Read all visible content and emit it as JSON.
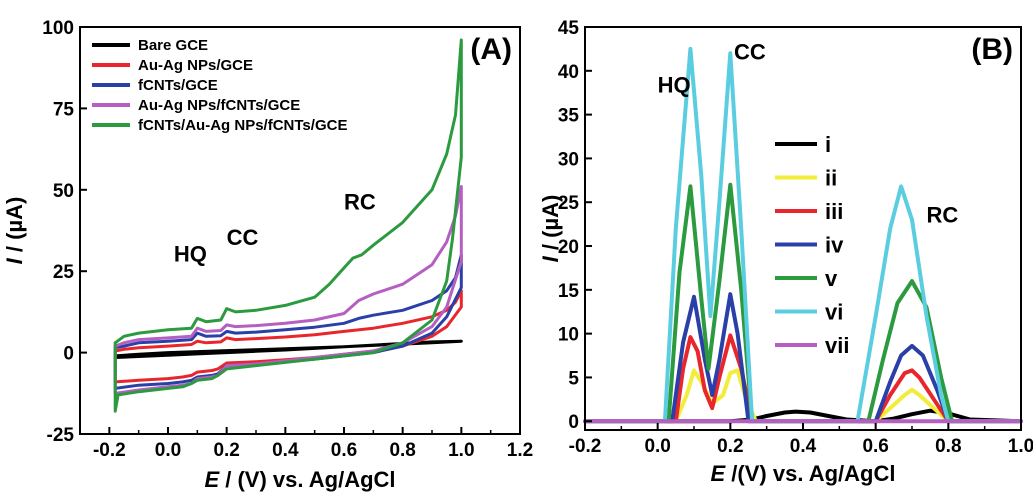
{
  "chart_data": [
    {
      "type": "line",
      "panel_label": "(A)",
      "xlabel": {
        "italic": "E",
        "rest": " / (V) vs. Ag/AgCl"
      },
      "ylabel": {
        "italic": "I",
        "rest": " / (µA)"
      },
      "xlim": [
        -0.3,
        1.2
      ],
      "ylim": [
        -25,
        100
      ],
      "xticks": [
        -0.2,
        0.0,
        0.2,
        0.4,
        0.6,
        0.8,
        1.0,
        1.2
      ],
      "xtick_labels": [
        "-0.2",
        "0.0",
        "0.2",
        "0.4",
        "0.6",
        "0.8",
        "1.0",
        "1.2"
      ],
      "yticks": [
        -25,
        0,
        25,
        50,
        75,
        100
      ],
      "ytick_labels": [
        "-25",
        "0",
        "25",
        "50",
        "75",
        "100"
      ],
      "legend_position": "top-left",
      "annotations": [
        {
          "text": "HQ",
          "x": 0.02,
          "y": 28
        },
        {
          "text": "CC",
          "x": 0.2,
          "y": 33
        },
        {
          "text": "RC",
          "x": 0.6,
          "y": 44
        }
      ],
      "series": [
        {
          "name": "Bare GCE",
          "color": "#000000",
          "x": [
            -0.18,
            -0.1,
            0.0,
            0.1,
            0.2,
            0.3,
            0.4,
            0.5,
            0.6,
            0.7,
            0.8,
            0.9,
            1.0,
            1.0,
            0.9,
            0.8,
            0.7,
            0.6,
            0.5,
            0.4,
            0.3,
            0.2,
            0.1,
            0.0,
            -0.1,
            -0.18,
            -0.18
          ],
          "y": [
            -1,
            -0.5,
            0,
            0.3,
            0.6,
            0.9,
            1.2,
            1.5,
            1.8,
            2.2,
            2.6,
            3,
            3.5,
            3.5,
            3.3,
            2.8,
            2.3,
            1.8,
            1.3,
            0.8,
            0.4,
            0,
            -0.4,
            -0.8,
            -1.2,
            -1.5,
            -1
          ]
        },
        {
          "name": "Au-Ag NPs/GCE",
          "color": "#e8262b",
          "x": [
            -0.18,
            -0.15,
            -0.1,
            0.0,
            0.08,
            0.1,
            0.13,
            0.18,
            0.2,
            0.23,
            0.3,
            0.4,
            0.5,
            0.6,
            0.7,
            0.8,
            0.9,
            0.95,
            0.98,
            1.0,
            1.0,
            0.95,
            0.9,
            0.8,
            0.7,
            0.6,
            0.5,
            0.4,
            0.3,
            0.2,
            0.17,
            0.15,
            0.1,
            0.08,
            0.05,
            0.0,
            -0.1,
            -0.18,
            -0.18
          ],
          "y": [
            0.5,
            1,
            1.5,
            2,
            2.5,
            3.5,
            3,
            3.3,
            4.5,
            4,
            4.3,
            4.8,
            5.5,
            6.5,
            7.5,
            9,
            11,
            13,
            15.5,
            19,
            14,
            8,
            5,
            2,
            0.5,
            -0.5,
            -1.5,
            -2.2,
            -2.8,
            -3.2,
            -5,
            -5.5,
            -6,
            -7,
            -7.5,
            -8,
            -8.5,
            -9,
            0.5
          ]
        },
        {
          "name": "fCNTs/GCE",
          "color": "#2b3fa8",
          "x": [
            -0.18,
            -0.15,
            -0.1,
            0.0,
            0.08,
            0.1,
            0.13,
            0.18,
            0.2,
            0.23,
            0.3,
            0.4,
            0.5,
            0.6,
            0.65,
            0.7,
            0.8,
            0.9,
            0.95,
            0.98,
            1.0,
            1.0,
            0.95,
            0.9,
            0.8,
            0.7,
            0.6,
            0.5,
            0.4,
            0.3,
            0.2,
            0.17,
            0.15,
            0.1,
            0.08,
            0.05,
            0.0,
            -0.1,
            -0.18,
            -0.18
          ],
          "y": [
            1.5,
            2,
            3,
            3.5,
            4,
            6,
            5,
            5.2,
            6.5,
            6,
            6.3,
            7,
            7.8,
            9,
            10.5,
            11.5,
            13,
            16,
            19,
            23,
            30,
            20,
            11,
            6,
            2,
            0,
            -1,
            -2,
            -2.8,
            -3.5,
            -4,
            -6.5,
            -7,
            -7.5,
            -8.5,
            -9,
            -9.5,
            -10,
            -11,
            1.5
          ]
        },
        {
          "name": "Au-Ag NPs/fCNTs/GCE",
          "color": "#b45fc1",
          "x": [
            -0.18,
            -0.15,
            -0.1,
            0.0,
            0.08,
            0.1,
            0.13,
            0.18,
            0.2,
            0.23,
            0.3,
            0.4,
            0.5,
            0.6,
            0.65,
            0.7,
            0.8,
            0.9,
            0.95,
            0.98,
            1.0,
            1.0,
            0.95,
            0.9,
            0.8,
            0.7,
            0.6,
            0.5,
            0.4,
            0.3,
            0.2,
            0.17,
            0.15,
            0.1,
            0.08,
            0.05,
            0.0,
            -0.1,
            -0.18,
            -0.18
          ],
          "y": [
            2,
            3,
            4,
            4.5,
            5,
            7.5,
            6.5,
            6.8,
            8.5,
            8,
            8.3,
            9,
            10,
            12,
            16,
            18,
            21,
            27,
            34,
            42,
            51,
            28,
            14,
            8,
            3,
            0.5,
            -0.5,
            -1.5,
            -2.5,
            -3.5,
            -4,
            -7,
            -7.5,
            -8,
            -9.5,
            -10,
            -10.5,
            -11.5,
            -12.5,
            2
          ]
        },
        {
          "name": "fCNTs/Au-Ag NPs/fCNTs/GCE",
          "color": "#2c9a3f",
          "x": [
            -0.18,
            -0.15,
            -0.1,
            0.0,
            0.08,
            0.1,
            0.13,
            0.18,
            0.2,
            0.23,
            0.3,
            0.4,
            0.5,
            0.55,
            0.6,
            0.63,
            0.66,
            0.7,
            0.8,
            0.9,
            0.95,
            0.98,
            1.0,
            1.0,
            0.97,
            0.95,
            0.9,
            0.8,
            0.7,
            0.6,
            0.5,
            0.4,
            0.3,
            0.2,
            0.17,
            0.15,
            0.1,
            0.08,
            0.05,
            0.0,
            -0.1,
            -0.17,
            -0.18,
            -0.18
          ],
          "y": [
            3,
            5,
            6,
            7,
            7.5,
            10.5,
            9.5,
            10,
            13.5,
            12.5,
            13,
            14.5,
            17,
            21,
            26,
            29,
            30,
            33,
            40,
            50,
            61,
            73,
            96,
            60,
            35,
            22,
            10,
            3,
            0,
            -1,
            -2,
            -3,
            -4,
            -5,
            -7,
            -8,
            -8.5,
            -9.5,
            -10.5,
            -11,
            -12,
            -13,
            -18,
            3
          ]
        }
      ]
    },
    {
      "type": "line",
      "panel_label": "(B)",
      "xlabel": {
        "italic": "E",
        "rest": " /(V) vs. Ag/AgCl"
      },
      "ylabel": {
        "italic": "I",
        "rest": " / (µA)"
      },
      "xlim": [
        -0.2,
        1.0
      ],
      "ylim": [
        -1,
        45
      ],
      "xticks": [
        -0.2,
        0.0,
        0.2,
        0.4,
        0.6,
        0.8,
        1.0
      ],
      "xtick_labels": [
        "-0.2",
        "0.0",
        "0.2",
        "0.4",
        "0.6",
        "0.8",
        "1.0"
      ],
      "yticks": [
        0,
        5,
        10,
        15,
        20,
        25,
        30,
        35,
        40,
        45
      ],
      "ytick_labels": [
        "0",
        "5",
        "10",
        "15",
        "20",
        "25",
        "30",
        "35",
        "40",
        "45"
      ],
      "legend_position": "center",
      "annotations": [
        {
          "text": "HQ",
          "x": 0.0,
          "y": 37.5
        },
        {
          "text": "CC",
          "x": 0.21,
          "y": 41.3
        },
        {
          "text": "RC",
          "x": 0.74,
          "y": 22.7
        }
      ],
      "series": [
        {
          "name": "i",
          "color": "#000000",
          "x": [
            -0.2,
            0.2,
            0.26,
            0.3,
            0.35,
            0.38,
            0.42,
            0.47,
            0.52,
            0.6,
            0.65,
            0.7,
            0.75,
            0.8,
            0.86,
            1.0
          ],
          "y": [
            0,
            0,
            0.2,
            0.6,
            1.0,
            1.1,
            1.0,
            0.6,
            0.2,
            0,
            0.3,
            0.8,
            1.2,
            0.9,
            0.2,
            0
          ]
        },
        {
          "name": "ii",
          "color": "#f2ec3b",
          "x": [
            -0.2,
            0.05,
            0.08,
            0.1,
            0.12,
            0.15,
            0.18,
            0.2,
            0.22,
            0.24,
            0.27,
            0.6,
            0.64,
            0.68,
            0.7,
            0.72,
            0.76,
            0.8,
            1.0
          ],
          "y": [
            0,
            0,
            3,
            5.8,
            4.5,
            2.0,
            3,
            5.5,
            5.8,
            3,
            0,
            0,
            1.5,
            3.0,
            3.6,
            3.0,
            1.5,
            0,
            0
          ]
        },
        {
          "name": "iii",
          "color": "#e8262b",
          "x": [
            -0.2,
            0.05,
            0.07,
            0.09,
            0.11,
            0.13,
            0.15,
            0.17,
            0.2,
            0.23,
            0.26,
            0.6,
            0.64,
            0.68,
            0.7,
            0.72,
            0.76,
            0.8,
            1.0
          ],
          "y": [
            0,
            0,
            6,
            9.6,
            8,
            3.5,
            1.5,
            5,
            9.8,
            6,
            0,
            0,
            3,
            5.5,
            5.8,
            5,
            2.5,
            0,
            0
          ]
        },
        {
          "name": "iv",
          "color": "#2b3fa8",
          "x": [
            -0.2,
            0.04,
            0.07,
            0.1,
            0.13,
            0.15,
            0.17,
            0.2,
            0.22,
            0.25,
            0.6,
            0.64,
            0.67,
            0.7,
            0.73,
            0.77,
            0.8,
            1.0
          ],
          "y": [
            0,
            0,
            9,
            14.2,
            7,
            3.0,
            7,
            14.5,
            10,
            0,
            0,
            4.5,
            7.5,
            8.6,
            7.5,
            3.5,
            0,
            0
          ]
        },
        {
          "name": "v",
          "color": "#2c9a3f",
          "x": [
            -0.2,
            0.03,
            0.06,
            0.09,
            0.12,
            0.14,
            0.17,
            0.2,
            0.23,
            0.26,
            0.58,
            0.62,
            0.66,
            0.7,
            0.74,
            0.78,
            0.81,
            1.0
          ],
          "y": [
            0,
            0,
            17,
            26.8,
            14,
            6,
            16,
            27,
            15,
            0,
            0,
            7,
            13.5,
            16,
            13,
            5,
            0,
            0
          ]
        },
        {
          "name": "vi",
          "color": "#5bcde0",
          "x": [
            -0.2,
            0.02,
            0.05,
            0.09,
            0.12,
            0.145,
            0.17,
            0.2,
            0.23,
            0.26,
            0.55,
            0.6,
            0.64,
            0.67,
            0.7,
            0.74,
            0.78,
            0.8,
            1.0
          ],
          "y": [
            0,
            0,
            22,
            42.5,
            28,
            12,
            25,
            42,
            22,
            0,
            0,
            12,
            22,
            26.8,
            23,
            12,
            3,
            0,
            0
          ]
        },
        {
          "name": "vii",
          "color": "#b45fc1",
          "x": [
            -0.2,
            1.0
          ],
          "y": [
            0,
            0
          ]
        }
      ]
    }
  ]
}
